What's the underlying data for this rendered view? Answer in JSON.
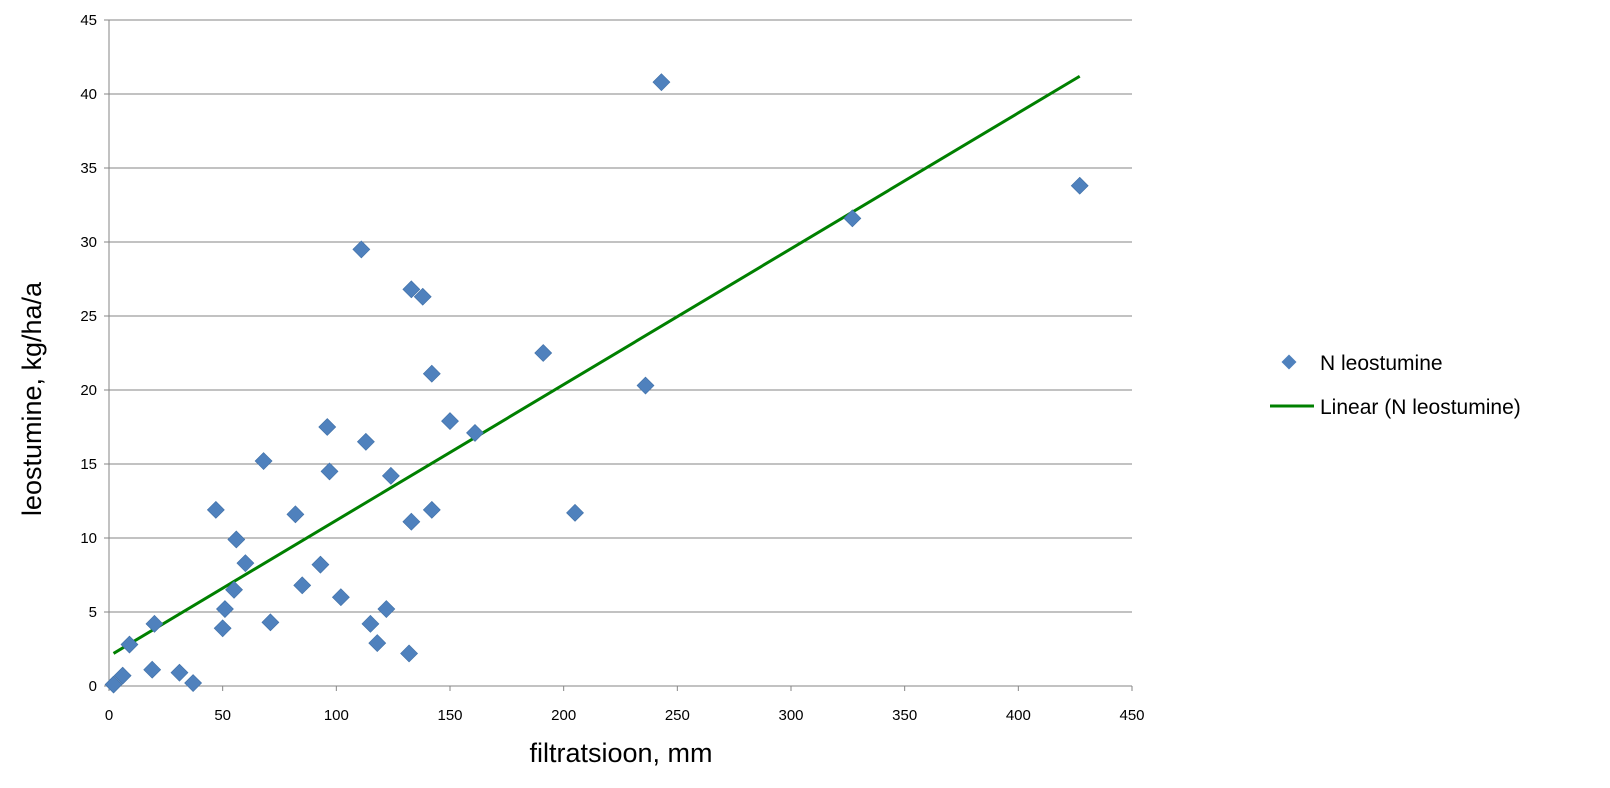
{
  "chart_data": {
    "type": "scatter",
    "title": "",
    "xlabel": "filtratsioon, mm",
    "ylabel": "leostumine, kg/ha/a",
    "xlim": [
      0,
      450
    ],
    "ylim": [
      0,
      45
    ],
    "x_ticks": [
      0,
      50,
      100,
      150,
      200,
      250,
      300,
      350,
      400,
      450
    ],
    "y_ticks": [
      0,
      5,
      10,
      15,
      20,
      25,
      30,
      35,
      40,
      45
    ],
    "grid": "horizontal",
    "legend_position": "right",
    "series": [
      {
        "name": "N leostumine",
        "type": "scatter",
        "marker": "diamond",
        "color": "#4F81BD",
        "points": [
          [
            2,
            0.1
          ],
          [
            6,
            0.7
          ],
          [
            9,
            2.8
          ],
          [
            19,
            1.1
          ],
          [
            20,
            4.2
          ],
          [
            31,
            0.9
          ],
          [
            37,
            0.2
          ],
          [
            47,
            11.9
          ],
          [
            50,
            3.9
          ],
          [
            51,
            5.2
          ],
          [
            55,
            6.5
          ],
          [
            56,
            9.9
          ],
          [
            60,
            8.3
          ],
          [
            68,
            15.2
          ],
          [
            71,
            4.3
          ],
          [
            82,
            11.6
          ],
          [
            85,
            6.8
          ],
          [
            93,
            8.2
          ],
          [
            96,
            17.5
          ],
          [
            97,
            14.5
          ],
          [
            102,
            6.0
          ],
          [
            111,
            29.5
          ],
          [
            113,
            16.5
          ],
          [
            115,
            4.2
          ],
          [
            118,
            2.9
          ],
          [
            122,
            5.2
          ],
          [
            124,
            14.2
          ],
          [
            132,
            2.2
          ],
          [
            133,
            11.1
          ],
          [
            133,
            26.8
          ],
          [
            138,
            26.3
          ],
          [
            142,
            21.1
          ],
          [
            142,
            11.9
          ],
          [
            150,
            17.9
          ],
          [
            161,
            17.1
          ],
          [
            191,
            22.5
          ],
          [
            205,
            11.7
          ],
          [
            236,
            20.3
          ],
          [
            243,
            40.8
          ],
          [
            327,
            31.6
          ],
          [
            427,
            33.8
          ]
        ]
      },
      {
        "name": "Linear (N leostumine)",
        "type": "line",
        "color": "#008000",
        "points": [
          [
            2,
            2.2
          ],
          [
            427,
            41.2
          ]
        ]
      }
    ]
  }
}
